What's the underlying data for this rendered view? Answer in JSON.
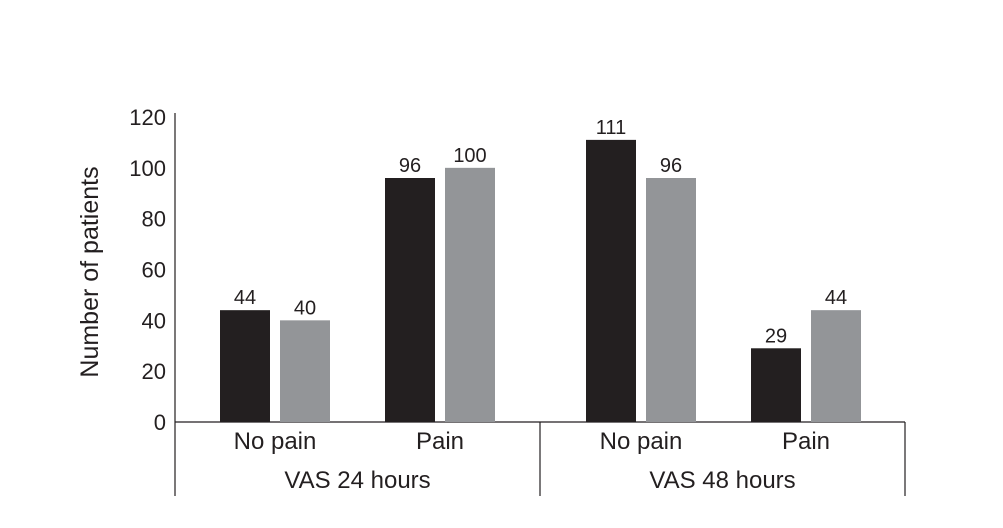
{
  "chart_data": {
    "type": "bar",
    "title": "",
    "xlabel": "",
    "ylabel": "Number of patients",
    "ylim": [
      0,
      120
    ],
    "yticks": [
      0,
      20,
      40,
      60,
      80,
      100,
      120
    ],
    "grid": false,
    "legend": "none",
    "groups": [
      "VAS 24 hours",
      "VAS 48 hours"
    ],
    "categories": [
      "No pain",
      "Pain",
      "No pain",
      "Pain"
    ],
    "category_group": [
      0,
      0,
      1,
      1
    ],
    "series": [
      {
        "values": [
          44,
          96,
          111,
          29
        ],
        "color": "#231f20"
      },
      {
        "values": [
          40,
          100,
          96,
          44
        ],
        "color": "#939598"
      }
    ],
    "data_labels": [
      [
        "44",
        "96",
        "111",
        "29"
      ],
      [
        "40",
        "100",
        "96",
        "44"
      ]
    ]
  }
}
